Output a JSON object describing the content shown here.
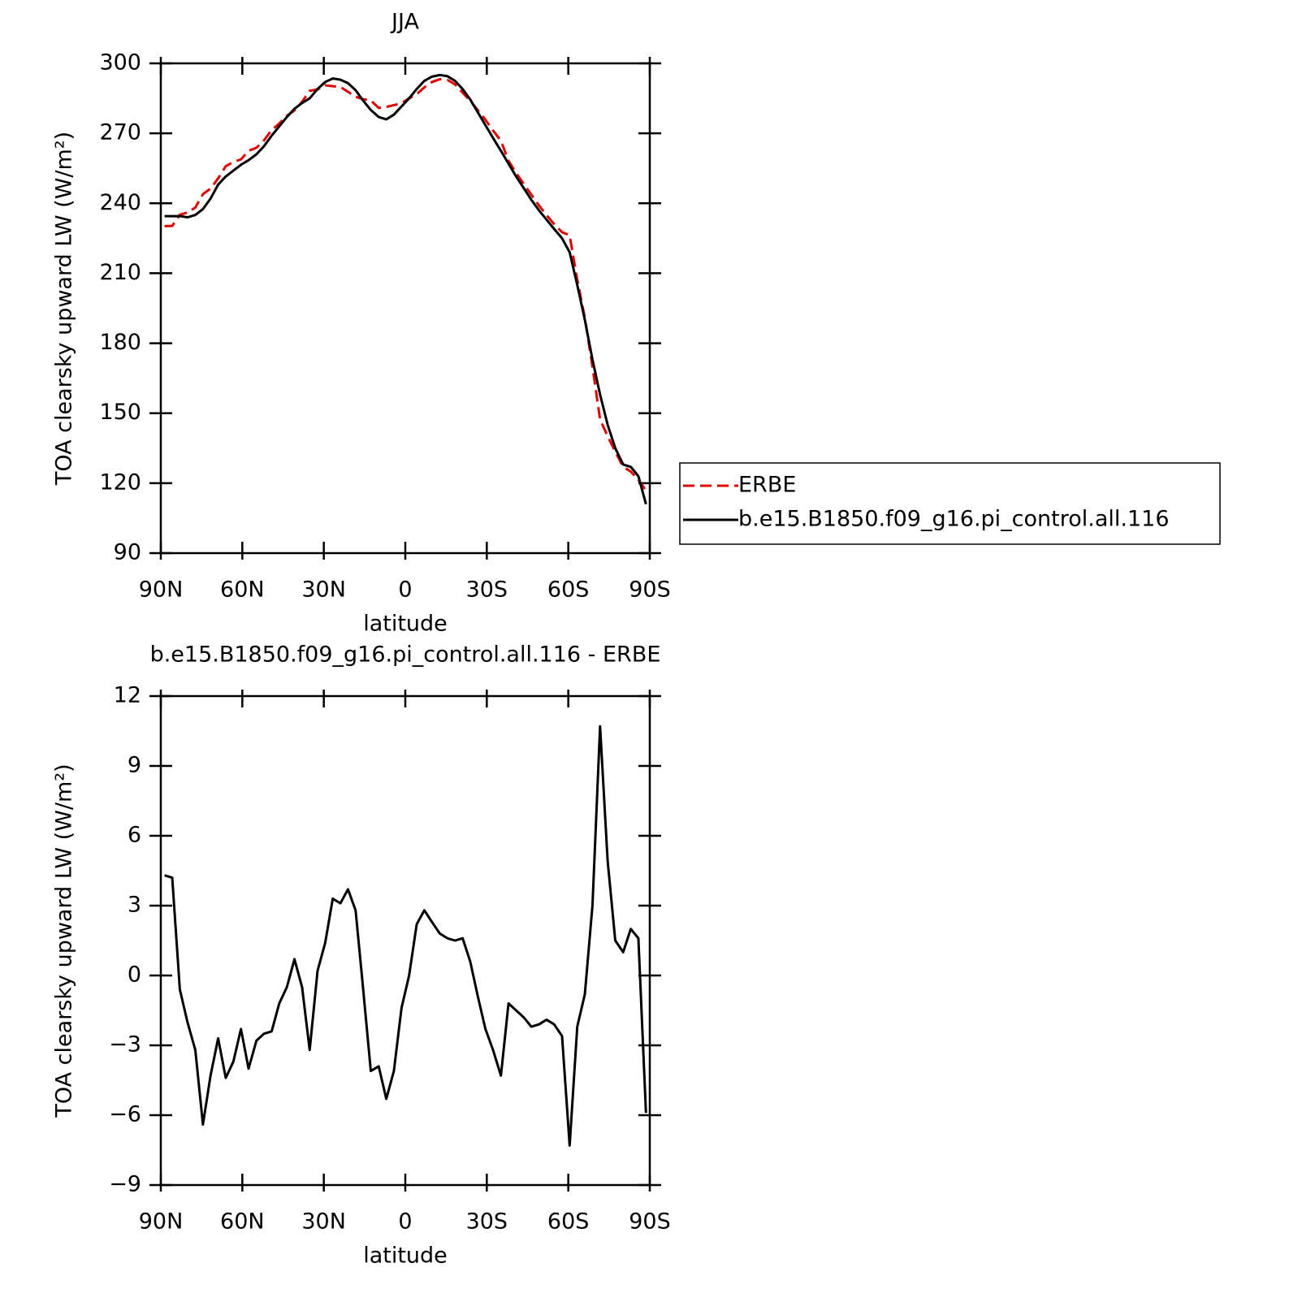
{
  "chart_data": [
    {
      "type": "line",
      "title": "JJA",
      "xlabel": "latitude",
      "ylabel": "TOA clearsky upward LW (W/m²)",
      "xlim": [
        90,
        -90
      ],
      "ylim": [
        90,
        300
      ],
      "xticks": [
        {
          "value": 90,
          "label": "90N"
        },
        {
          "value": 60,
          "label": "60N"
        },
        {
          "value": 30,
          "label": "30N"
        },
        0,
        {
          "value": -30,
          "label": "30S"
        },
        {
          "value": -60,
          "label": "60S"
        },
        {
          "value": -90,
          "label": "90S"
        }
      ],
      "yticks": [
        90,
        120,
        150,
        180,
        210,
        240,
        270,
        300
      ],
      "legend": "right",
      "x": [
        88.6,
        85.8,
        83.0,
        80.2,
        77.3,
        74.5,
        71.7,
        68.9,
        66.1,
        63.3,
        60.5,
        57.7,
        54.8,
        52.0,
        49.2,
        46.4,
        43.6,
        40.8,
        38.0,
        35.2,
        32.3,
        29.5,
        26.7,
        23.9,
        21.1,
        18.3,
        15.5,
        12.7,
        9.8,
        7.0,
        4.2,
        1.4,
        -1.4,
        -4.2,
        -7.0,
        -9.8,
        -12.7,
        -15.5,
        -18.3,
        -21.1,
        -23.9,
        -26.7,
        -29.5,
        -32.3,
        -35.2,
        -38.0,
        -40.8,
        -43.6,
        -46.4,
        -49.2,
        -52.0,
        -54.8,
        -57.7,
        -60.5,
        -63.3,
        -66.1,
        -68.9,
        -71.7,
        -74.5,
        -77.3,
        -80.2,
        -83.0,
        -85.8,
        -88.6
      ],
      "series": [
        {
          "name": "ERBE",
          "color": "#e00000",
          "dash": true,
          "values": [
            230.2,
            230.3,
            235.1,
            236,
            238.2,
            243.9,
            246.3,
            250.7,
            255.9,
            257.7,
            258.8,
            262.5,
            263.8,
            267,
            271.4,
            274.2,
            277.5,
            279.8,
            283.5,
            288.2,
            288.8,
            290.6,
            290.2,
            289.9,
            287.8,
            285.7,
            284.6,
            284.1,
            280.9,
            281.3,
            282.1,
            282.9,
            285,
            286.8,
            289.7,
            292,
            293.2,
            292.9,
            291,
            287.4,
            283.9,
            279.9,
            275.8,
            271.2,
            266.8,
            258.2,
            253,
            248.3,
            243.7,
            239.1,
            234.9,
            231.1,
            227.6,
            226.3,
            207.2,
            190.8,
            170,
            147.3,
            140.1,
            133.5,
            127,
            125,
            121.4,
            116.9
          ]
        },
        {
          "name": "b.e15.B1850.f09_g16.pi_control.all.116",
          "color": "#000000",
          "dash": false,
          "values": [
            234.5,
            234.5,
            234.5,
            234,
            235,
            237.5,
            242,
            248,
            251.5,
            254,
            256.5,
            258.5,
            261,
            264.5,
            269,
            273,
            277,
            280.5,
            283,
            285,
            289,
            292,
            293.5,
            293,
            291.5,
            288.5,
            284,
            280,
            277,
            276,
            278,
            281.5,
            285,
            289,
            292.5,
            294.3,
            295,
            294.5,
            292.5,
            289,
            284.5,
            279,
            273.5,
            268,
            262.5,
            257,
            251.5,
            246.5,
            241.5,
            237,
            233,
            229,
            225,
            219,
            205,
            190,
            173,
            158,
            145,
            135,
            128,
            127,
            123,
            111
          ]
        }
      ]
    },
    {
      "type": "line",
      "title": "b.e15.B1850.f09_g16.pi_control.all.116 - ERBE",
      "xlabel": "latitude",
      "ylabel": "TOA clearsky upward LW (W/m²)",
      "xlim": [
        90,
        -90
      ],
      "ylim": [
        -9,
        12
      ],
      "xticks": [
        {
          "value": 90,
          "label": "90N"
        },
        {
          "value": 60,
          "label": "60N"
        },
        {
          "value": 30,
          "label": "30N"
        },
        0,
        {
          "value": -30,
          "label": "30S"
        },
        {
          "value": -60,
          "label": "60S"
        },
        {
          "value": -90,
          "label": "90S"
        }
      ],
      "yticks": [
        {
          "value": -9,
          "label": "−9"
        },
        {
          "value": -6,
          "label": "−6"
        },
        {
          "value": -3,
          "label": "−3"
        },
        0,
        3,
        6,
        9,
        12
      ],
      "x": [
        88.6,
        85.8,
        83.0,
        80.2,
        77.3,
        74.5,
        71.7,
        68.9,
        66.1,
        63.3,
        60.5,
        57.7,
        54.8,
        52.0,
        49.2,
        46.4,
        43.6,
        40.8,
        38.0,
        35.2,
        32.3,
        29.5,
        26.7,
        23.9,
        21.1,
        18.3,
        15.5,
        12.7,
        9.8,
        7.0,
        4.2,
        1.4,
        -1.4,
        -4.2,
        -7.0,
        -9.8,
        -12.7,
        -15.5,
        -18.3,
        -21.1,
        -23.9,
        -26.7,
        -29.5,
        -32.3,
        -35.2,
        -38.0,
        -40.8,
        -43.6,
        -46.4,
        -49.2,
        -52.0,
        -54.8,
        -57.7,
        -60.5,
        -63.3,
        -66.1,
        -68.9,
        -71.7,
        -74.5,
        -77.3,
        -80.2,
        -83.0,
        -85.8,
        -88.6
      ],
      "series": [
        {
          "color": "#000000",
          "dash": false,
          "values": [
            4.3,
            4.2,
            -0.6,
            -2.0,
            -3.2,
            -6.4,
            -4.3,
            -2.7,
            -4.4,
            -3.7,
            -2.3,
            -4.0,
            -2.8,
            -2.5,
            -2.4,
            -1.2,
            -0.5,
            0.7,
            -0.5,
            -3.2,
            0.2,
            1.4,
            3.3,
            3.1,
            3.7,
            2.8,
            -0.6,
            -4.1,
            -3.9,
            -5.3,
            -4.1,
            -1.4,
            0,
            2.2,
            2.8,
            2.3,
            1.8,
            1.6,
            1.5,
            1.6,
            0.6,
            -0.9,
            -2.3,
            -3.2,
            -4.3,
            -1.2,
            -1.5,
            -1.8,
            -2.2,
            -2.1,
            -1.9,
            -2.1,
            -2.6,
            -7.3,
            -2.2,
            -0.8,
            3.0,
            10.7,
            4.9,
            1.5,
            1.0,
            2.0,
            1.6,
            -5.9
          ]
        }
      ]
    }
  ]
}
